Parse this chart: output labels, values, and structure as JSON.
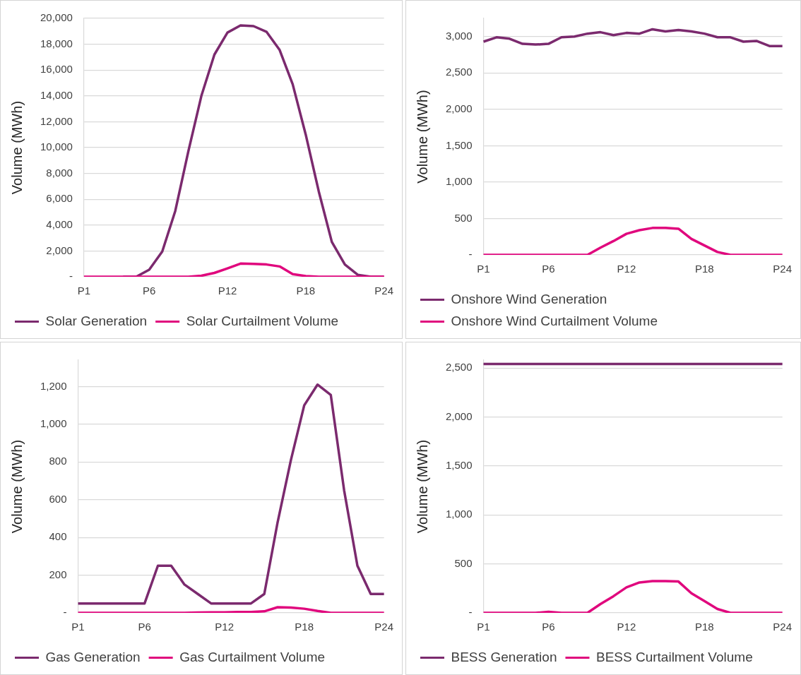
{
  "chart_data": [
    {
      "type": "line",
      "ylabel": "Volume (MWh)",
      "categories": [
        "P1",
        null,
        null,
        null,
        null,
        "P6",
        null,
        null,
        null,
        null,
        null,
        "P12",
        null,
        null,
        null,
        null,
        null,
        "P18",
        null,
        null,
        null,
        null,
        null,
        "P24"
      ],
      "ylim": [
        0,
        20000
      ],
      "yticks": [
        {
          "value": 0,
          "label": "-"
        },
        {
          "value": 2000,
          "label": "2,000"
        },
        {
          "value": 4000,
          "label": "4,000"
        },
        {
          "value": 6000,
          "label": "6,000"
        },
        {
          "value": 8000,
          "label": "8,000"
        },
        {
          "value": 10000,
          "label": "10,000"
        },
        {
          "value": 12000,
          "label": "12,000"
        },
        {
          "value": 14000,
          "label": "14,000"
        },
        {
          "value": 16000,
          "label": "16,000"
        },
        {
          "value": 18000,
          "label": "18,000"
        },
        {
          "value": 20000,
          "label": "20,000"
        }
      ],
      "grid": "y",
      "legend": "bottom",
      "marker": "none",
      "series": [
        {
          "name": "Solar Generation",
          "color": "#7b2a6e",
          "values": [
            null,
            null,
            null,
            0,
            0,
            550,
            1950,
            5100,
            9700,
            14000,
            17200,
            18900,
            19450,
            19400,
            18950,
            17550,
            14900,
            11000,
            6600,
            2700,
            950,
            150,
            0,
            0
          ]
        },
        {
          "name": "Solar Curtailment Volume",
          "color": "#e0077d",
          "values": [
            0,
            0,
            0,
            0,
            0,
            0,
            0,
            0,
            0,
            80,
            300,
            650,
            1020,
            1000,
            950,
            800,
            200,
            60,
            0,
            0,
            0,
            0,
            0,
            0
          ]
        }
      ]
    },
    {
      "type": "line",
      "ylabel": "Volume (MWh)",
      "categories": [
        "P1",
        null,
        null,
        null,
        null,
        "P6",
        null,
        null,
        null,
        null,
        null,
        "P12",
        null,
        null,
        null,
        null,
        null,
        "P18",
        null,
        null,
        null,
        null,
        null,
        "P24"
      ],
      "ylim": [
        0,
        3250
      ],
      "yticks": [
        {
          "value": 0,
          "label": "-"
        },
        500,
        {
          "value": 1000,
          "label": "1,000"
        },
        {
          "value": 1500,
          "label": "1,500"
        },
        {
          "value": 2000,
          "label": "2,000"
        },
        {
          "value": 2500,
          "label": "2,500"
        },
        {
          "value": 3000,
          "label": "3,000"
        }
      ],
      "grid": "y",
      "legend": "bottom",
      "marker": "none",
      "series": [
        {
          "name": "Onshore Wind Generation",
          "color": "#7b2a6e",
          "values": [
            2930,
            2990,
            2970,
            2900,
            2890,
            2900,
            2990,
            3000,
            3040,
            3060,
            3020,
            3050,
            3040,
            3100,
            3070,
            3090,
            3070,
            3040,
            2990,
            2990,
            2930,
            2940,
            2870,
            2870
          ]
        },
        {
          "name": "Onshore Wind Curtailment Volume",
          "color": "#e0077d",
          "values": [
            0,
            0,
            0,
            0,
            0,
            0,
            0,
            0,
            0,
            100,
            190,
            290,
            340,
            370,
            370,
            360,
            220,
            130,
            40,
            0,
            0,
            0,
            0,
            0
          ]
        }
      ]
    },
    {
      "type": "line",
      "ylabel": "Volume (MWh)",
      "categories": [
        "P1",
        null,
        null,
        null,
        null,
        "P6",
        null,
        null,
        null,
        null,
        null,
        "P12",
        null,
        null,
        null,
        null,
        null,
        "P18",
        null,
        null,
        null,
        null,
        null,
        "P24"
      ],
      "ylim": [
        0,
        1340
      ],
      "yticks": [
        {
          "value": 0,
          "label": "-"
        },
        200,
        400,
        600,
        800,
        {
          "value": 1000,
          "label": "1,000"
        },
        {
          "value": 1200,
          "label": "1,200"
        }
      ],
      "grid": "y",
      "legend": "bottom",
      "marker": "none",
      "series": [
        {
          "name": "Gas Generation",
          "color": "#7b2a6e",
          "values": [
            50,
            50,
            50,
            50,
            50,
            50,
            250,
            250,
            150,
            100,
            50,
            50,
            50,
            50,
            100,
            480,
            810,
            1100,
            1210,
            1155,
            650,
            250,
            100,
            100
          ]
        },
        {
          "name": "Gas Curtailment Volume",
          "color": "#e0077d",
          "values": [
            0,
            0,
            0,
            0,
            0,
            0,
            0,
            0,
            0,
            2,
            3,
            3,
            5,
            5,
            8,
            30,
            28,
            22,
            10,
            0,
            0,
            0,
            0,
            0
          ]
        }
      ]
    },
    {
      "type": "line",
      "ylabel": "Volume (MWh)",
      "categories": [
        "P1",
        null,
        null,
        null,
        null,
        "P6",
        null,
        null,
        null,
        null,
        null,
        "P12",
        null,
        null,
        null,
        null,
        null,
        "P18",
        null,
        null,
        null,
        null,
        null,
        "P24"
      ],
      "ylim": [
        0,
        2580
      ],
      "yticks": [
        {
          "value": 0,
          "label": "-"
        },
        500,
        {
          "value": 1000,
          "label": "1,000"
        },
        {
          "value": 1500,
          "label": "1,500"
        },
        {
          "value": 2000,
          "label": "2,000"
        },
        {
          "value": 2500,
          "label": "2,500"
        }
      ],
      "grid": "y",
      "legend": "bottom",
      "marker": "none",
      "series": [
        {
          "name": "BESS Generation",
          "color": "#7b2a6e",
          "values": [
            2540,
            2540,
            2540,
            2540,
            2540,
            2540,
            2540,
            2540,
            2540,
            2540,
            2540,
            2540,
            2540,
            2540,
            2540,
            2540,
            2540,
            2540,
            2540,
            2540,
            2540,
            2540,
            2540,
            2540
          ]
        },
        {
          "name": "BESS Curtailment Volume",
          "color": "#e0077d",
          "values": [
            0,
            0,
            0,
            0,
            0,
            10,
            0,
            0,
            0,
            90,
            170,
            260,
            310,
            325,
            325,
            320,
            200,
            120,
            40,
            0,
            0,
            0,
            0,
            0
          ]
        }
      ]
    }
  ]
}
